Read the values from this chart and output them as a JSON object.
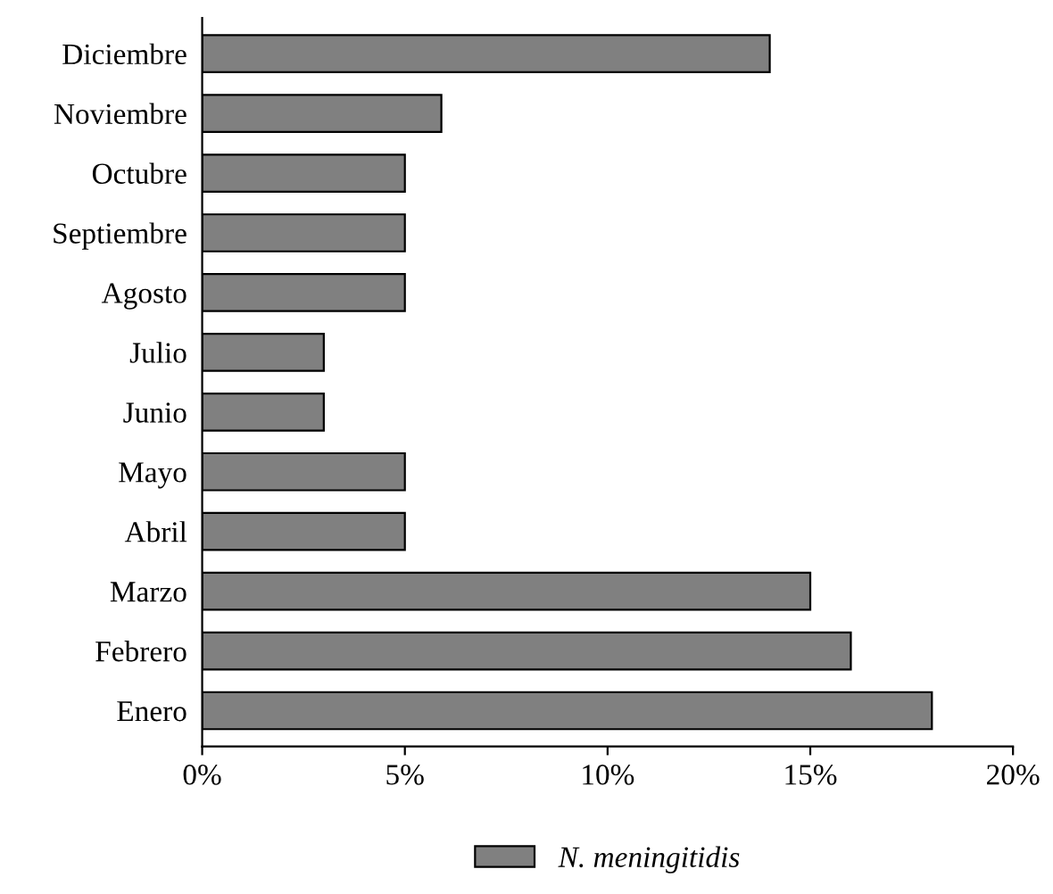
{
  "chart_data": {
    "type": "bar",
    "orientation": "horizontal",
    "categories": [
      "Diciembre",
      "Noviembre",
      "Octubre",
      "Septiembre",
      "Agosto",
      "Julio",
      "Junio",
      "Mayo",
      "Abril",
      "Marzo",
      "Febrero",
      "Enero"
    ],
    "series": [
      {
        "name": "N. meningitidis",
        "color": "#808080",
        "values": [
          14,
          5.9,
          5,
          5,
          5,
          3,
          3,
          5,
          5,
          15,
          16,
          18
        ]
      }
    ],
    "xlim": [
      0,
      20
    ],
    "xticks": [
      {
        "value": 0,
        "label": "0%"
      },
      {
        "value": 5,
        "label": "5%"
      },
      {
        "value": 10,
        "label": "10%"
      },
      {
        "value": 15,
        "label": "15%"
      },
      {
        "value": 20,
        "label": "20%"
      }
    ],
    "grid": false,
    "legend": "bottom"
  }
}
